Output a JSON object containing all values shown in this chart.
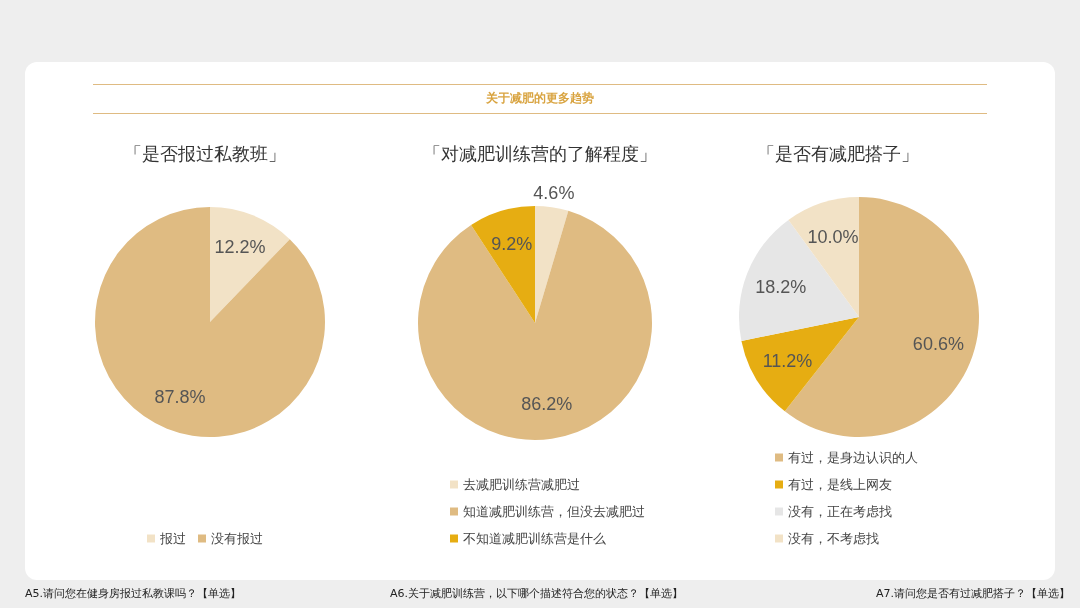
{
  "chart_data": [
    {
      "type": "pie",
      "title": "「是否报过私教班」",
      "categories": [
        "报过",
        "没有报过"
      ],
      "values": [
        12.2,
        87.8
      ],
      "colors": [
        "#f2e2c6",
        "#dfbb82"
      ],
      "value_labels": [
        "12.2%",
        "87.8%"
      ],
      "legend": "bottom",
      "annotations": [
        "A5.请问您在健身房报过私教课吗？【单选】"
      ]
    },
    {
      "type": "pie",
      "title": "「对减肥训练营的了解程度」",
      "subtitle": "关于减肥的更多趋势",
      "categories": [
        "去减肥训练营减肥过",
        "知道减肥训练营，但没去减肥过",
        "不知道减肥训练营是什么"
      ],
      "values": [
        4.6,
        86.2,
        9.2
      ],
      "colors": [
        "#f2e2c6",
        "#dfbb82",
        "#e6ad12"
      ],
      "value_labels": [
        "4.6%",
        "86.2%",
        "9.2%"
      ],
      "legend": "bottom",
      "annotations": [
        "A6.关于减肥训练营，以下哪个描述符合您的状态？【单选】"
      ]
    },
    {
      "type": "pie",
      "title": "「是否有减肥搭子」",
      "categories": [
        "有过，是身边认识的人",
        "有过，是线上网友",
        "没有，正在考虑找",
        "没有，不考虑找"
      ],
      "values": [
        60.6,
        11.2,
        18.2,
        10.0
      ],
      "colors": [
        "#dfbb82",
        "#e6ad12",
        "#e6e6e6",
        "#f2e2c6"
      ],
      "value_labels": [
        "60.6%",
        "11.2%",
        "18.2%",
        "10.0%"
      ],
      "legend": "bottom",
      "annotations": [
        "A7.请问您是否有过减肥搭子？【单选】"
      ]
    }
  ]
}
